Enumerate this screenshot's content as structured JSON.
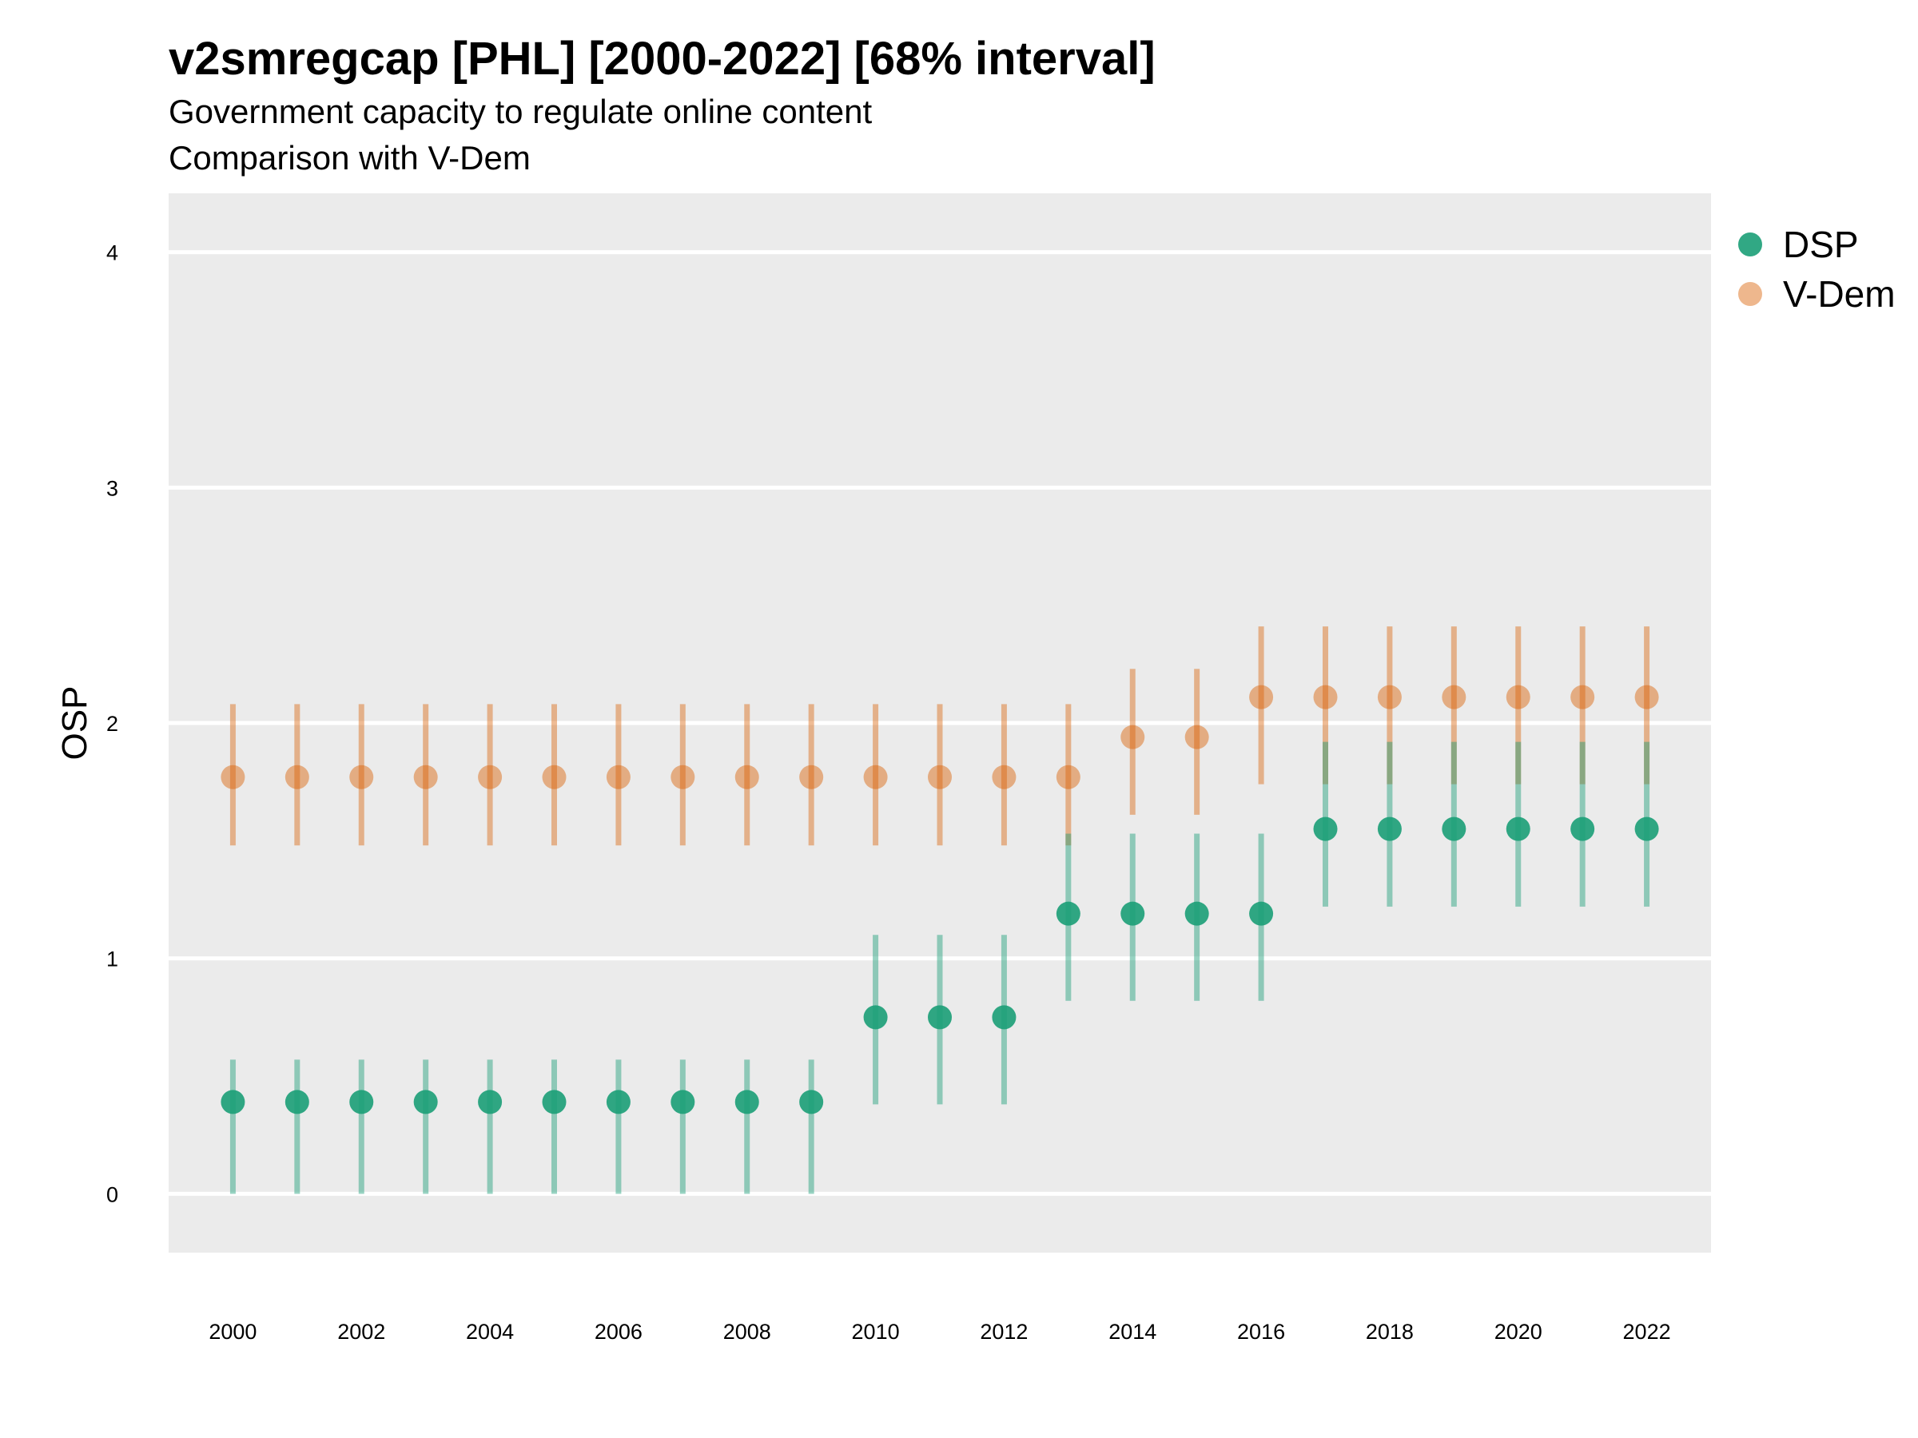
{
  "chart_data": {
    "type": "scatter",
    "title": "v2smregcap [PHL] [2000-2022] [68% interval]",
    "subtitle": "Government capacity to regulate online content",
    "caption": "Comparison with V-Dem",
    "xlabel": "",
    "ylabel": "OSP",
    "ylim": [
      -0.25,
      4.25
    ],
    "xlim": [
      1999.0,
      2023.0
    ],
    "yticks": [
      0,
      1,
      2,
      3,
      4
    ],
    "xticks": [
      2000,
      2002,
      2004,
      2006,
      2008,
      2010,
      2012,
      2014,
      2016,
      2018,
      2020,
      2022
    ],
    "grid": true,
    "legend_position": "right",
    "series": [
      {
        "name": "DSP",
        "color": "#1b9e77",
        "x": [
          2000,
          2001,
          2002,
          2003,
          2004,
          2005,
          2006,
          2007,
          2008,
          2009,
          2010,
          2011,
          2012,
          2013,
          2014,
          2015,
          2016,
          2017,
          2018,
          2019,
          2020,
          2021,
          2022
        ],
        "y": [
          0.39,
          0.39,
          0.39,
          0.39,
          0.39,
          0.39,
          0.39,
          0.39,
          0.39,
          0.39,
          0.75,
          0.75,
          0.75,
          1.19,
          1.19,
          1.19,
          1.19,
          1.55,
          1.55,
          1.55,
          1.55,
          1.55,
          1.55
        ],
        "lower": [
          0.0,
          0.0,
          0.0,
          0.0,
          0.0,
          0.0,
          0.0,
          0.0,
          0.0,
          0.0,
          0.38,
          0.38,
          0.38,
          0.82,
          0.82,
          0.82,
          0.82,
          1.22,
          1.22,
          1.22,
          1.22,
          1.22,
          1.22
        ],
        "upper": [
          0.57,
          0.57,
          0.57,
          0.57,
          0.57,
          0.57,
          0.57,
          0.57,
          0.57,
          0.57,
          1.1,
          1.1,
          1.1,
          1.53,
          1.53,
          1.53,
          1.53,
          1.92,
          1.92,
          1.92,
          1.92,
          1.92,
          1.92
        ]
      },
      {
        "name": "V-Dem",
        "color": "#d95f02",
        "x": [
          2000,
          2001,
          2002,
          2003,
          2004,
          2005,
          2006,
          2007,
          2008,
          2009,
          2010,
          2011,
          2012,
          2013,
          2014,
          2015,
          2016,
          2017,
          2018,
          2019,
          2020,
          2021,
          2022
        ],
        "y": [
          1.77,
          1.77,
          1.77,
          1.77,
          1.77,
          1.77,
          1.77,
          1.77,
          1.77,
          1.77,
          1.77,
          1.77,
          1.77,
          1.77,
          1.94,
          1.94,
          2.11,
          2.11,
          2.11,
          2.11,
          2.11,
          2.11,
          2.11
        ],
        "lower": [
          1.48,
          1.48,
          1.48,
          1.48,
          1.48,
          1.48,
          1.48,
          1.48,
          1.48,
          1.48,
          1.48,
          1.48,
          1.48,
          1.48,
          1.61,
          1.61,
          1.74,
          1.74,
          1.74,
          1.74,
          1.74,
          1.74,
          1.74
        ],
        "upper": [
          2.08,
          2.08,
          2.08,
          2.08,
          2.08,
          2.08,
          2.08,
          2.08,
          2.08,
          2.08,
          2.08,
          2.08,
          2.08,
          2.08,
          2.23,
          2.23,
          2.41,
          2.41,
          2.41,
          2.41,
          2.41,
          2.41,
          2.41
        ]
      }
    ]
  }
}
